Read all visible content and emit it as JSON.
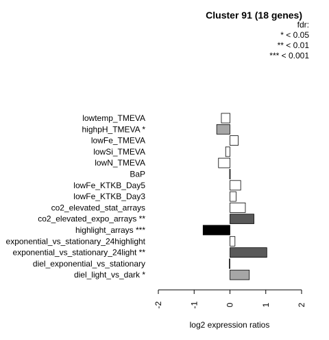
{
  "chart_data": {
    "type": "bar",
    "orientation": "horizontal",
    "title": "Cluster 91 (18 genes)",
    "xlabel": "log2 expression ratios",
    "ylabel": "",
    "xlim": [
      -2,
      2
    ],
    "xticks": [
      "-2",
      "-1",
      "0",
      "1",
      "2"
    ],
    "legend": {
      "title": "fdr:",
      "entries": [
        "* < 0.05",
        "** < 0.01",
        "*** < 0.001"
      ],
      "placement": "top-right"
    },
    "categories": [
      "lowtemp_TMEVA",
      "highpH_TMEVA *",
      "lowFe_TMEVA",
      "lowSi_TMEVA",
      "lowN_TMEVA",
      "BaP",
      "lowFe_KTKB_Day5",
      "lowFe_KTKB_Day3",
      "co2_elevated_stat_arrays",
      "co2_elevated_expo_arrays **",
      "highlight_arrays ***",
      "exponential_vs_stationary_24highlight",
      "exponential_vs_stationary_24light **",
      "diel_exponential_vs_stationary",
      "diel_light_vs_dark *"
    ],
    "values": [
      -0.24,
      -0.37,
      0.23,
      -0.12,
      -0.32,
      -0.01,
      0.3,
      0.17,
      0.43,
      0.67,
      -0.75,
      0.14,
      1.03,
      -0.02,
      0.54
    ],
    "colors": [
      "#ffffff",
      "#a6a6a6",
      "#ffffff",
      "#ffffff",
      "#ffffff",
      "#ffffff",
      "#ffffff",
      "#ffffff",
      "#ffffff",
      "#595959",
      "#000000",
      "#ffffff",
      "#595959",
      "#ffffff",
      "#a6a6a6"
    ]
  }
}
